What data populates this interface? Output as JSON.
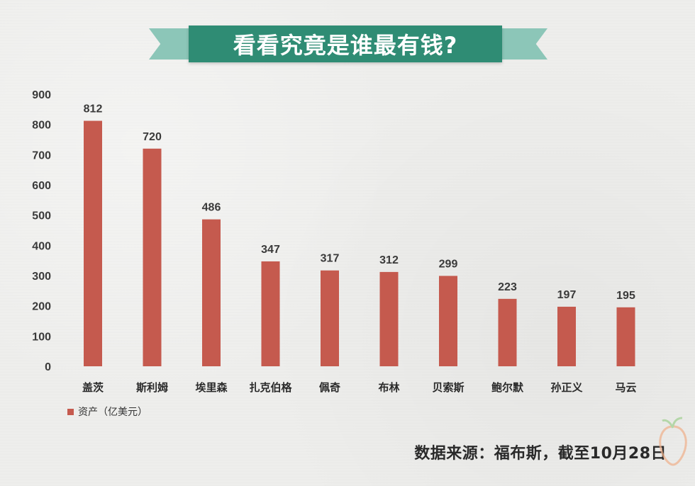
{
  "title": "看看究竟是谁最有钱?",
  "legend_label": "资产（亿美元）",
  "source_text": "数据来源：福布斯，截至10月28日",
  "colors": {
    "bar": "#c55a4e",
    "banner": "#2f8c74",
    "ribbon": "#8cc6b8"
  },
  "chart_data": {
    "type": "bar",
    "title": "看看究竟是谁最有钱?",
    "categories": [
      "盖茨",
      "斯利姆",
      "埃里森",
      "扎克伯格",
      "佩奇",
      "布林",
      "贝索斯",
      "鲍尔默",
      "孙正义",
      "马云"
    ],
    "series": [
      {
        "name": "资产（亿美元）",
        "values": [
          812,
          720,
          486,
          347,
          317,
          312,
          299,
          223,
          197,
          195
        ]
      }
    ],
    "yticks": [
      0,
      100,
      200,
      300,
      400,
      500,
      600,
      700,
      800,
      900
    ],
    "ylim": [
      0,
      900
    ],
    "xlabel": "",
    "ylabel": "",
    "grid": false,
    "legend_position": "bottom-left",
    "data_labels": true
  }
}
